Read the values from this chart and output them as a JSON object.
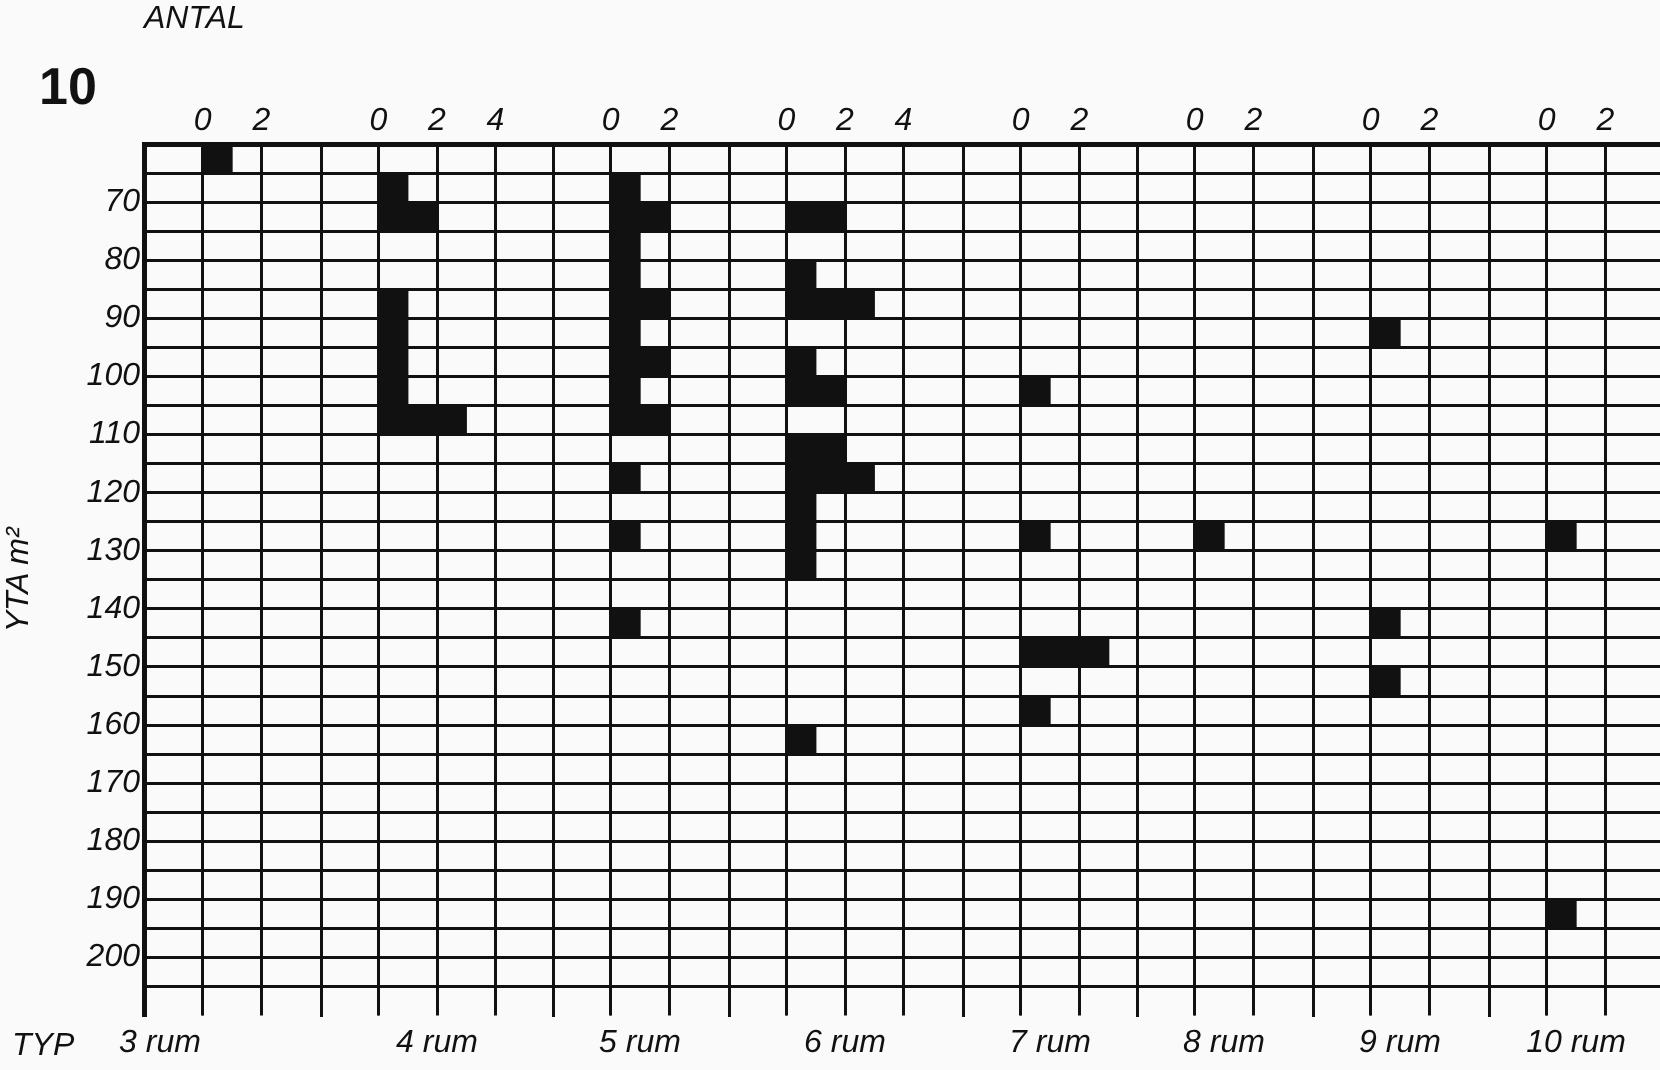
{
  "chart_data": [
    {
      "type": "histogram",
      "title": "3 rum",
      "xlabel": "ANTAL",
      "ylabel": "YTA m²",
      "annotations": [
        "10",
        "TYP"
      ],
      "orientation": "horizontal",
      "color": "#111111",
      "grid": true,
      "bins": [
        60,
        65,
        70,
        75,
        80,
        85,
        90,
        95,
        100,
        105,
        110,
        115,
        120,
        125,
        130,
        135,
        140,
        145,
        150,
        155,
        160,
        165,
        170,
        175,
        180,
        185,
        190,
        195,
        200,
        205,
        210
      ],
      "values": [
        1,
        0,
        0,
        0,
        0,
        0,
        0,
        0,
        0,
        0,
        0,
        0,
        0,
        0,
        0,
        0,
        0,
        0,
        0,
        0,
        0,
        0,
        0,
        0,
        0,
        0,
        0,
        0,
        0,
        0
      ],
      "xlim": [
        -2,
        4
      ],
      "xticks": [
        0,
        2
      ],
      "ylim": [
        210,
        60
      ],
      "yticks": [
        {
          "value": 65,
          "label": null
        },
        70,
        {
          "value": 75,
          "label": null
        },
        80,
        {
          "value": 85,
          "label": null
        },
        90,
        {
          "value": 95,
          "label": null
        },
        100,
        {
          "value": 105,
          "label": null
        },
        110,
        {
          "value": 115,
          "label": null
        },
        120,
        {
          "value": 125,
          "label": null
        },
        130,
        {
          "value": 135,
          "label": null
        },
        140,
        {
          "value": 145,
          "label": null
        },
        150,
        {
          "value": 155,
          "label": null
        },
        160,
        {
          "value": 165,
          "label": null
        },
        170,
        {
          "value": 175,
          "label": null
        },
        180,
        {
          "value": 185,
          "label": null
        },
        190,
        {
          "value": 195,
          "label": null
        },
        200,
        {
          "value": 205,
          "label": null
        }
      ]
    },
    {
      "type": "histogram",
      "title": "4 rum",
      "orientation": "horizontal",
      "color": "#111111",
      "grid": true,
      "tick_labels": "x",
      "bins": [
        60,
        65,
        70,
        75,
        80,
        85,
        90,
        95,
        100,
        105,
        110,
        115,
        120,
        125,
        130,
        135,
        140,
        145,
        150,
        155,
        160,
        165,
        170,
        175,
        180,
        185,
        190,
        195,
        200,
        205,
        210
      ],
      "values": [
        0,
        1,
        2,
        0,
        0,
        1,
        1,
        1,
        1,
        3,
        0,
        0,
        0,
        0,
        0,
        0,
        0,
        0,
        0,
        0,
        0,
        0,
        0,
        0,
        0,
        0,
        0,
        0,
        0,
        0
      ],
      "xlim": [
        -2,
        6
      ],
      "xticks": [
        0,
        2,
        4
      ],
      "ylim": [
        210,
        60
      ],
      "yticks": [
        65,
        70,
        75,
        80,
        85,
        90,
        95,
        100,
        105,
        110,
        115,
        120,
        125,
        130,
        135,
        140,
        145,
        150,
        155,
        160,
        165,
        170,
        175,
        180,
        185,
        190,
        195,
        200,
        205
      ]
    },
    {
      "type": "histogram",
      "title": "5 rum",
      "orientation": "horizontal",
      "color": "#111111",
      "grid": true,
      "tick_labels": "x",
      "bins": [
        60,
        65,
        70,
        75,
        80,
        85,
        90,
        95,
        100,
        105,
        110,
        115,
        120,
        125,
        130,
        135,
        140,
        145,
        150,
        155,
        160,
        165,
        170,
        175,
        180,
        185,
        190,
        195,
        200,
        205,
        210
      ],
      "values": [
        0,
        1,
        2,
        1,
        1,
        2,
        1,
        2,
        1,
        2,
        0,
        1,
        0,
        1,
        0,
        0,
        1,
        0,
        0,
        0,
        0,
        0,
        0,
        0,
        0,
        0,
        0,
        0,
        0,
        0
      ],
      "xlim": [
        -2,
        4
      ],
      "xticks": [
        0,
        2
      ],
      "ylim": [
        210,
        60
      ],
      "yticks": [
        65,
        70,
        75,
        80,
        85,
        90,
        95,
        100,
        105,
        110,
        115,
        120,
        125,
        130,
        135,
        140,
        145,
        150,
        155,
        160,
        165,
        170,
        175,
        180,
        185,
        190,
        195,
        200,
        205
      ]
    },
    {
      "type": "histogram",
      "title": "6 rum",
      "orientation": "horizontal",
      "color": "#111111",
      "grid": true,
      "tick_labels": "x",
      "bins": [
        60,
        65,
        70,
        75,
        80,
        85,
        90,
        95,
        100,
        105,
        110,
        115,
        120,
        125,
        130,
        135,
        140,
        145,
        150,
        155,
        160,
        165,
        170,
        175,
        180,
        185,
        190,
        195,
        200,
        205,
        210
      ],
      "values": [
        0,
        0,
        2,
        0,
        1,
        3,
        0,
        1,
        2,
        0,
        2,
        3,
        1,
        1,
        1,
        0,
        0,
        0,
        0,
        0,
        1,
        0,
        0,
        0,
        0,
        0,
        0,
        0,
        0,
        0
      ],
      "xlim": [
        -2,
        6
      ],
      "xticks": [
        0,
        2,
        4
      ],
      "ylim": [
        210,
        60
      ],
      "yticks": [
        65,
        70,
        75,
        80,
        85,
        90,
        95,
        100,
        105,
        110,
        115,
        120,
        125,
        130,
        135,
        140,
        145,
        150,
        155,
        160,
        165,
        170,
        175,
        180,
        185,
        190,
        195,
        200,
        205
      ]
    },
    {
      "type": "histogram",
      "title": "7 rum",
      "orientation": "horizontal",
      "color": "#111111",
      "grid": true,
      "tick_labels": "x",
      "bins": [
        60,
        65,
        70,
        75,
        80,
        85,
        90,
        95,
        100,
        105,
        110,
        115,
        120,
        125,
        130,
        135,
        140,
        145,
        150,
        155,
        160,
        165,
        170,
        175,
        180,
        185,
        190,
        195,
        200,
        205,
        210
      ],
      "values": [
        0,
        0,
        0,
        0,
        0,
        0,
        0,
        0,
        1,
        0,
        0,
        0,
        0,
        1,
        0,
        0,
        0,
        3,
        0,
        1,
        0,
        0,
        0,
        0,
        0,
        0,
        0,
        0,
        0,
        0
      ],
      "xlim": [
        -2,
        4
      ],
      "xticks": [
        0,
        2
      ],
      "ylim": [
        210,
        60
      ],
      "yticks": [
        65,
        70,
        75,
        80,
        85,
        90,
        95,
        100,
        105,
        110,
        115,
        120,
        125,
        130,
        135,
        140,
        145,
        150,
        155,
        160,
        165,
        170,
        175,
        180,
        185,
        190,
        195,
        200,
        205
      ]
    },
    {
      "type": "histogram",
      "title": "8 rum",
      "orientation": "horizontal",
      "color": "#111111",
      "grid": true,
      "tick_labels": "x",
      "bins": [
        60,
        65,
        70,
        75,
        80,
        85,
        90,
        95,
        100,
        105,
        110,
        115,
        120,
        125,
        130,
        135,
        140,
        145,
        150,
        155,
        160,
        165,
        170,
        175,
        180,
        185,
        190,
        195,
        200,
        205,
        210
      ],
      "values": [
        0,
        0,
        0,
        0,
        0,
        0,
        0,
        0,
        0,
        0,
        0,
        0,
        0,
        1,
        0,
        0,
        0,
        0,
        0,
        0,
        0,
        0,
        0,
        0,
        0,
        0,
        0,
        0,
        0,
        0
      ],
      "xlim": [
        -2,
        4
      ],
      "xticks": [
        0,
        2
      ],
      "ylim": [
        210,
        60
      ],
      "yticks": [
        65,
        70,
        75,
        80,
        85,
        90,
        95,
        100,
        105,
        110,
        115,
        120,
        125,
        130,
        135,
        140,
        145,
        150,
        155,
        160,
        165,
        170,
        175,
        180,
        185,
        190,
        195,
        200,
        205
      ]
    },
    {
      "type": "histogram",
      "title": "9 rum",
      "orientation": "horizontal",
      "color": "#111111",
      "grid": true,
      "tick_labels": "x",
      "bins": [
        60,
        65,
        70,
        75,
        80,
        85,
        90,
        95,
        100,
        105,
        110,
        115,
        120,
        125,
        130,
        135,
        140,
        145,
        150,
        155,
        160,
        165,
        170,
        175,
        180,
        185,
        190,
        195,
        200,
        205,
        210
      ],
      "values": [
        0,
        0,
        0,
        0,
        0,
        0,
        1,
        0,
        0,
        0,
        0,
        0,
        0,
        0,
        0,
        0,
        1,
        0,
        1,
        0,
        0,
        0,
        0,
        0,
        0,
        0,
        0,
        0,
        0,
        0
      ],
      "xlim": [
        -2,
        4
      ],
      "xticks": [
        0,
        2
      ],
      "ylim": [
        210,
        60
      ],
      "yticks": [
        65,
        70,
        75,
        80,
        85,
        90,
        95,
        100,
        105,
        110,
        115,
        120,
        125,
        130,
        135,
        140,
        145,
        150,
        155,
        160,
        165,
        170,
        175,
        180,
        185,
        190,
        195,
        200,
        205
      ]
    },
    {
      "type": "histogram",
      "title": "10 rum",
      "orientation": "horizontal",
      "color": "#111111",
      "grid": true,
      "tick_labels": "x",
      "bins": [
        60,
        65,
        70,
        75,
        80,
        85,
        90,
        95,
        100,
        105,
        110,
        115,
        120,
        125,
        130,
        135,
        140,
        145,
        150,
        155,
        160,
        165,
        170,
        175,
        180,
        185,
        190,
        195,
        200,
        205,
        210
      ],
      "values": [
        0,
        0,
        0,
        0,
        0,
        0,
        0,
        0,
        0,
        0,
        0,
        0,
        0,
        1,
        0,
        0,
        0,
        0,
        0,
        0,
        0,
        0,
        0,
        0,
        0,
        0,
        1,
        0,
        0,
        0
      ],
      "xlim": [
        -2,
        4
      ],
      "xticks": [
        0,
        2
      ],
      "ylim": [
        210,
        60
      ],
      "yticks": [
        65,
        70,
        75,
        80,
        85,
        90,
        95,
        100,
        105,
        110,
        115,
        120,
        125,
        130,
        135,
        140,
        145,
        150,
        155,
        160,
        165,
        170,
        175,
        180,
        185,
        190,
        195,
        200,
        205
      ]
    }
  ]
}
